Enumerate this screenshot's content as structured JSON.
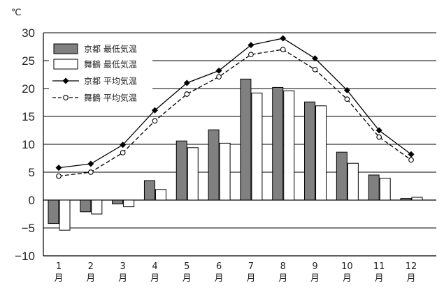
{
  "chart_data": {
    "type": "bar",
    "unit_label": "℃",
    "x_tick_labels": [
      {
        "num": "1",
        "suffix": "月"
      },
      {
        "num": "2",
        "suffix": "月"
      },
      {
        "num": "3",
        "suffix": "月"
      },
      {
        "num": "4",
        "suffix": "月"
      },
      {
        "num": "5",
        "suffix": "月"
      },
      {
        "num": "6",
        "suffix": "月"
      },
      {
        "num": "7",
        "suffix": "月"
      },
      {
        "num": "8",
        "suffix": "月"
      },
      {
        "num": "9",
        "suffix": "月"
      },
      {
        "num": "10",
        "suffix": "月"
      },
      {
        "num": "11",
        "suffix": "月"
      },
      {
        "num": "12",
        "suffix": "月"
      }
    ],
    "yticks": [
      "30",
      "25",
      "20",
      "15",
      "10",
      "5",
      "0",
      "−5",
      "−10"
    ],
    "ytick_values": [
      30,
      25,
      20,
      15,
      10,
      5,
      0,
      -5,
      -10
    ],
    "ylim": [
      -10,
      30
    ],
    "grid": true,
    "legend_position": "top-left",
    "series": [
      {
        "name": "京都 最低気温",
        "kind": "bar",
        "color": "#808080",
        "values": [
          -4.2,
          -2.1,
          -0.7,
          3.5,
          10.6,
          12.6,
          21.7,
          20.2,
          17.6,
          8.6,
          4.5,
          0.3
        ]
      },
      {
        "name": "舞鶴 最低気温",
        "kind": "bar",
        "color": "#ffffff",
        "values": [
          -5.4,
          -2.5,
          -1.2,
          1.9,
          9.4,
          10.2,
          19.2,
          19.6,
          16.9,
          6.6,
          3.9,
          0.5
        ]
      },
      {
        "name": "京都 平均気温",
        "kind": "line",
        "marker": "diamond",
        "line_style": "solid",
        "color": "#000000",
        "values": [
          5.8,
          6.5,
          9.9,
          16.1,
          21.0,
          23.2,
          27.8,
          29.0,
          25.4,
          19.7,
          12.5,
          8.2
        ]
      },
      {
        "name": "舞鶴 平均気温",
        "kind": "line",
        "marker": "circle",
        "line_style": "dashed",
        "color": "#000000",
        "values": [
          4.3,
          5.0,
          8.5,
          14.2,
          19.0,
          22.1,
          26.1,
          27.0,
          23.4,
          18.1,
          11.3,
          7.2
        ]
      }
    ]
  }
}
